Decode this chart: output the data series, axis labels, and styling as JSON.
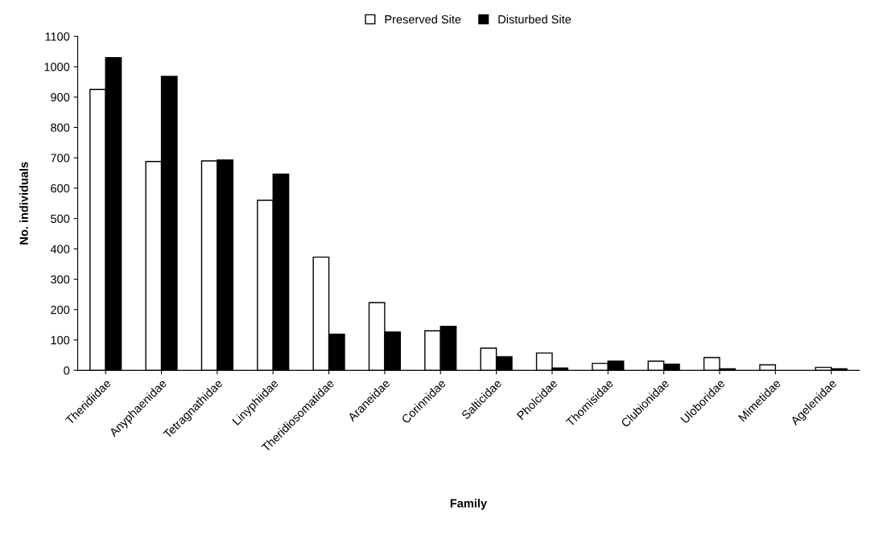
{
  "chart_data": {
    "type": "bar",
    "xlabel": "Family",
    "ylabel": "No. individuals",
    "categories": [
      "Theridiidae",
      "Anyphaenidae",
      "Tetragnathidae",
      "Linyphiidae",
      "Theridiosomatidae",
      "Araneidae",
      "Corinnidae",
      "Salticidae",
      "Pholcidae",
      "Thomisidae",
      "Clubionidae",
      "Uloboridae",
      "Mimetidae",
      "Agelenidae"
    ],
    "series": [
      {
        "name": "Preserved Site",
        "color": "#ffffff",
        "values": [
          925,
          688,
          690,
          560,
          373,
          223,
          130,
          73,
          57,
          23,
          30,
          42,
          18,
          10
        ]
      },
      {
        "name": "Disturbed Site",
        "color": "#000000",
        "values": [
          1030,
          968,
          693,
          646,
          119,
          126,
          145,
          45,
          8,
          30,
          20,
          5,
          null,
          5
        ]
      }
    ],
    "ylim": [
      0,
      1100
    ],
    "yticks": [
      0,
      100,
      200,
      300,
      400,
      500,
      600,
      700,
      800,
      900,
      1000,
      1100
    ],
    "grid": false,
    "legend": "top"
  }
}
